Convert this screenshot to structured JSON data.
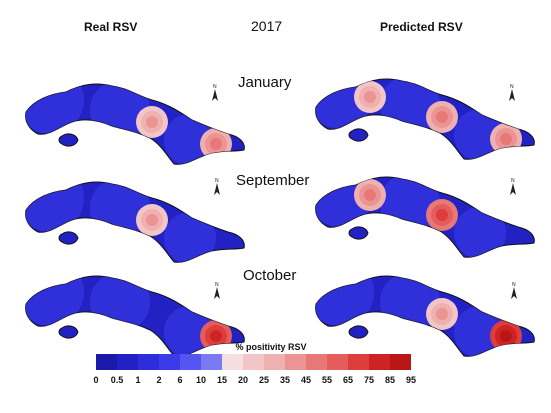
{
  "headers": {
    "left": "Real RSV",
    "year": "2017",
    "right": "Predicted RSV"
  },
  "months": [
    "January",
    "September",
    "October"
  ],
  "legend": {
    "title": "% positivity RSV",
    "ticks": [
      "0",
      "0.5",
      "1",
      "2",
      "6",
      "10",
      "15",
      "20",
      "25",
      "35",
      "45",
      "55",
      "65",
      "75",
      "85",
      "95"
    ],
    "colors": [
      "#1a1aa8",
      "#2222c4",
      "#2d2ddc",
      "#3b3bea",
      "#5555f0",
      "#7a7af2",
      "#f6dede",
      "#f2c6c6",
      "#efb0b0",
      "#ec9494",
      "#e87777",
      "#e45c5c",
      "#dd3d3d",
      "#cf2222",
      "#bb1616",
      "#a00d0d"
    ]
  },
  "maps": [
    {
      "panel": "real",
      "month": "January",
      "hotspots": [
        {
          "lng": "central",
          "level": "35"
        },
        {
          "lng": "east",
          "level": "45"
        }
      ]
    },
    {
      "panel": "predicted",
      "month": "January",
      "hotspots": [
        {
          "lng": "west",
          "level": "35"
        },
        {
          "lng": "central",
          "level": "45"
        },
        {
          "lng": "east",
          "level": "45"
        }
      ]
    },
    {
      "panel": "real",
      "month": "September",
      "hotspots": [
        {
          "lng": "central",
          "level": "35"
        }
      ]
    },
    {
      "panel": "predicted",
      "month": "September",
      "hotspots": [
        {
          "lng": "west",
          "level": "45"
        },
        {
          "lng": "central",
          "level": "65"
        }
      ]
    },
    {
      "panel": "real",
      "month": "October",
      "hotspots": [
        {
          "lng": "east",
          "level": "75"
        }
      ]
    },
    {
      "panel": "predicted",
      "month": "October",
      "hotspots": [
        {
          "lng": "central",
          "level": "35"
        },
        {
          "lng": "east",
          "level": "85"
        }
      ]
    }
  ]
}
